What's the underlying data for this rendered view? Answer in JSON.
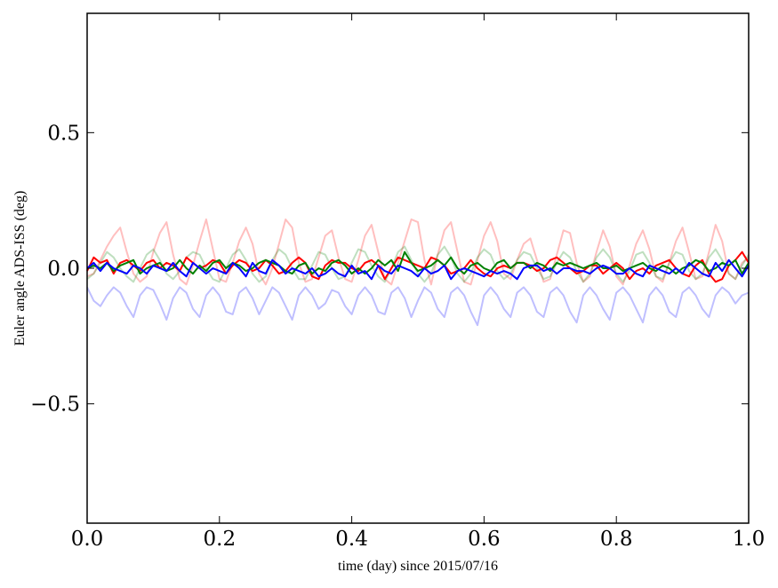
{
  "chart_data": {
    "type": "line",
    "title": "",
    "xlabel": "time (day) since 2015/07/16",
    "ylabel": "Euler angle ADS-ISS (deg)",
    "xlim": [
      0.0,
      1.0
    ],
    "ylim": [
      -0.94,
      0.94
    ],
    "x": {
      "start": 0.0,
      "end": 1.0
    },
    "xticks": [
      0.0,
      0.2,
      0.4,
      0.6,
      0.8,
      1.0
    ],
    "xtick_labels": [
      "0.0",
      "0.2",
      "0.4",
      "0.6",
      "0.8",
      "1.0"
    ],
    "yticks": [
      0.5,
      0.0,
      -0.5
    ],
    "ytick_labels": [
      "0.5",
      "0.0",
      "−0.5"
    ],
    "grid": false,
    "legend": "none",
    "series": [
      {
        "color": "#ff0000",
        "opacity": 0.25,
        "values": [
          -0.03,
          -0.02,
          0.03,
          0.08,
          0.12,
          0.15,
          0.06,
          -0.02,
          -0.05,
          -0.03,
          0.06,
          0.13,
          0.17,
          0.05,
          -0.04,
          -0.06,
          0.01,
          0.1,
          0.18,
          0.07,
          -0.04,
          -0.05,
          0.02,
          0.1,
          0.15,
          0.09,
          -0.02,
          -0.06,
          0.0,
          0.09,
          0.18,
          0.15,
          0.02,
          -0.05,
          -0.04,
          0.04,
          0.12,
          0.14,
          0.04,
          -0.04,
          -0.05,
          0.03,
          0.12,
          0.16,
          0.06,
          -0.04,
          -0.06,
          0.02,
          0.1,
          0.18,
          0.17,
          0.03,
          -0.06,
          0.05,
          0.14,
          0.17,
          0.06,
          -0.05,
          -0.06,
          0.03,
          0.12,
          0.17,
          0.1,
          -0.02,
          -0.04,
          0.03,
          0.09,
          0.11,
          0.03,
          -0.05,
          -0.04,
          0.05,
          0.14,
          0.13,
          0.02,
          -0.05,
          -0.03,
          0.06,
          0.14,
          0.08,
          -0.03,
          -0.06,
          0.01,
          0.09,
          0.14,
          0.07,
          -0.03,
          -0.05,
          0.02,
          0.1,
          0.15,
          0.06,
          -0.04,
          -0.03,
          0.06,
          0.16,
          0.1,
          -0.02,
          -0.04,
          0.02,
          0.04
        ]
      },
      {
        "color": "#008000",
        "opacity": 0.25,
        "values": [
          -0.04,
          -0.02,
          0.02,
          0.06,
          0.04,
          0.0,
          -0.03,
          -0.05,
          0.0,
          0.05,
          0.07,
          0.03,
          -0.02,
          -0.04,
          -0.01,
          0.04,
          0.06,
          0.05,
          0.0,
          -0.04,
          -0.05,
          0.0,
          0.05,
          0.07,
          0.03,
          -0.02,
          -0.05,
          -0.03,
          0.03,
          0.07,
          0.05,
          0.0,
          -0.04,
          -0.04,
          0.01,
          0.06,
          0.05,
          0.0,
          -0.04,
          -0.03,
          0.02,
          0.07,
          0.06,
          0.01,
          -0.03,
          -0.05,
          0.0,
          0.06,
          0.08,
          0.03,
          -0.02,
          -0.05,
          -0.02,
          0.05,
          0.08,
          0.04,
          -0.02,
          -0.05,
          -0.02,
          0.04,
          0.07,
          0.05,
          -0.01,
          -0.04,
          -0.02,
          0.03,
          0.06,
          0.05,
          0.0,
          -0.04,
          -0.03,
          0.02,
          0.06,
          0.04,
          -0.01,
          -0.05,
          -0.02,
          0.04,
          0.07,
          0.04,
          -0.02,
          -0.05,
          -0.01,
          0.05,
          0.06,
          0.02,
          -0.03,
          -0.04,
          0.02,
          0.06,
          0.05,
          -0.01,
          -0.04,
          -0.02,
          0.04,
          0.07,
          0.03,
          -0.02,
          -0.04,
          0.01,
          0.05
        ]
      },
      {
        "color": "#0000ff",
        "opacity": 0.25,
        "values": [
          -0.07,
          -0.12,
          -0.14,
          -0.1,
          -0.07,
          -0.09,
          -0.14,
          -0.18,
          -0.1,
          -0.07,
          -0.08,
          -0.13,
          -0.19,
          -0.11,
          -0.07,
          -0.09,
          -0.15,
          -0.18,
          -0.1,
          -0.07,
          -0.1,
          -0.16,
          -0.17,
          -0.09,
          -0.07,
          -0.11,
          -0.17,
          -0.12,
          -0.07,
          -0.09,
          -0.14,
          -0.19,
          -0.1,
          -0.07,
          -0.1,
          -0.15,
          -0.13,
          -0.08,
          -0.09,
          -0.14,
          -0.17,
          -0.1,
          -0.07,
          -0.1,
          -0.16,
          -0.17,
          -0.09,
          -0.07,
          -0.11,
          -0.18,
          -0.12,
          -0.07,
          -0.09,
          -0.15,
          -0.18,
          -0.09,
          -0.07,
          -0.1,
          -0.16,
          -0.21,
          -0.1,
          -0.07,
          -0.1,
          -0.15,
          -0.18,
          -0.09,
          -0.07,
          -0.1,
          -0.16,
          -0.18,
          -0.09,
          -0.07,
          -0.1,
          -0.16,
          -0.2,
          -0.1,
          -0.07,
          -0.1,
          -0.15,
          -0.19,
          -0.09,
          -0.07,
          -0.1,
          -0.15,
          -0.2,
          -0.1,
          -0.07,
          -0.1,
          -0.16,
          -0.18,
          -0.09,
          -0.07,
          -0.1,
          -0.15,
          -0.18,
          -0.1,
          -0.07,
          -0.09,
          -0.13,
          -0.1,
          -0.09
        ]
      },
      {
        "color": "#ff0000",
        "opacity": 1,
        "values": [
          -0.01,
          0.04,
          0.02,
          0.03,
          -0.02,
          0.02,
          0.03,
          0.01,
          -0.01,
          0.02,
          0.03,
          0.0,
          0.02,
          0.01,
          -0.01,
          0.04,
          0.02,
          0.0,
          0.01,
          0.03,
          0.02,
          -0.02,
          0.01,
          0.03,
          0.02,
          -0.01,
          0.0,
          0.03,
          0.01,
          -0.02,
          -0.01,
          0.02,
          0.04,
          0.02,
          -0.03,
          -0.04,
          0.01,
          0.03,
          0.02,
          0.02,
          0.0,
          -0.01,
          0.02,
          0.03,
          0.01,
          -0.04,
          0.0,
          0.04,
          0.03,
          0.02,
          0.01,
          0.0,
          0.04,
          0.03,
          0.01,
          -0.02,
          -0.01,
          0.0,
          0.03,
          0.0,
          -0.02,
          -0.03,
          0.0,
          0.01,
          0.0,
          0.02,
          0.02,
          0.01,
          -0.01,
          0.0,
          0.03,
          0.04,
          0.02,
          0.0,
          -0.02,
          -0.01,
          0.01,
          0.01,
          -0.02,
          0.0,
          0.02,
          0.0,
          -0.04,
          -0.01,
          0.0,
          -0.02,
          0.01,
          0.02,
          0.03,
          0.0,
          -0.02,
          -0.03,
          0.01,
          0.03,
          -0.02,
          -0.05,
          -0.04,
          0.01,
          0.03,
          0.06,
          0.02
        ]
      },
      {
        "color": "#008000",
        "opacity": 1,
        "values": [
          0.0,
          0.01,
          0.0,
          0.02,
          -0.01,
          0.01,
          0.02,
          0.03,
          -0.02,
          0.0,
          0.01,
          0.02,
          -0.01,
          0.0,
          0.03,
          0.0,
          -0.02,
          0.01,
          -0.01,
          0.02,
          0.03,
          0.0,
          0.02,
          0.01,
          -0.01,
          0.0,
          0.02,
          0.03,
          0.02,
          0.01,
          -0.01,
          -0.02,
          0.01,
          0.02,
          -0.02,
          0.0,
          -0.01,
          0.02,
          0.03,
          0.01,
          -0.02,
          0.0,
          -0.02,
          0.0,
          0.03,
          0.01,
          0.03,
          -0.01,
          0.06,
          0.02,
          -0.01,
          0.0,
          0.01,
          0.03,
          0.01,
          0.04,
          0.0,
          -0.02,
          0.01,
          0.02,
          0.0,
          -0.01,
          0.02,
          0.03,
          0.0,
          0.02,
          0.02,
          0.0,
          0.02,
          0.01,
          -0.01,
          0.02,
          0.01,
          0.02,
          0.01,
          0.0,
          0.01,
          0.02,
          0.0,
          0.0,
          0.01,
          -0.01,
          0.0,
          0.01,
          0.02,
          0.0,
          -0.01,
          0.01,
          0.0,
          -0.02,
          0.0,
          0.01,
          0.03,
          0.02,
          -0.01,
          0.0,
          0.02,
          0.01,
          0.03,
          -0.02,
          0.02
        ]
      },
      {
        "color": "#0000ff",
        "opacity": 1,
        "values": [
          0.0,
          0.02,
          -0.01,
          0.02,
          0.0,
          -0.01,
          -0.02,
          0.01,
          0.0,
          -0.02,
          0.01,
          0.0,
          -0.01,
          0.02,
          -0.01,
          -0.03,
          0.02,
          0.0,
          -0.02,
          0.0,
          -0.01,
          -0.02,
          0.02,
          0.0,
          -0.03,
          0.02,
          -0.01,
          -0.02,
          0.03,
          0.01,
          -0.02,
          0.0,
          -0.01,
          -0.02,
          0.0,
          -0.03,
          -0.02,
          0.0,
          -0.02,
          -0.03,
          0.01,
          -0.02,
          -0.01,
          -0.04,
          0.01,
          -0.01,
          -0.02,
          0.01,
          0.0,
          -0.01,
          -0.03,
          0.0,
          -0.02,
          -0.01,
          0.01,
          -0.04,
          -0.01,
          0.0,
          -0.01,
          -0.02,
          -0.03,
          -0.01,
          -0.02,
          -0.01,
          -0.02,
          -0.04,
          0.0,
          0.01,
          0.01,
          -0.01,
          0.0,
          -0.02,
          0.0,
          0.0,
          -0.01,
          -0.01,
          -0.02,
          0.0,
          0.01,
          0.0,
          -0.02,
          -0.02,
          0.0,
          -0.02,
          -0.03,
          0.01,
          0.0,
          -0.01,
          -0.02,
          0.0,
          -0.02,
          0.02,
          0.0,
          -0.02,
          -0.03,
          0.02,
          -0.01,
          0.03,
          0.0,
          -0.03,
          0.01
        ]
      }
    ]
  }
}
